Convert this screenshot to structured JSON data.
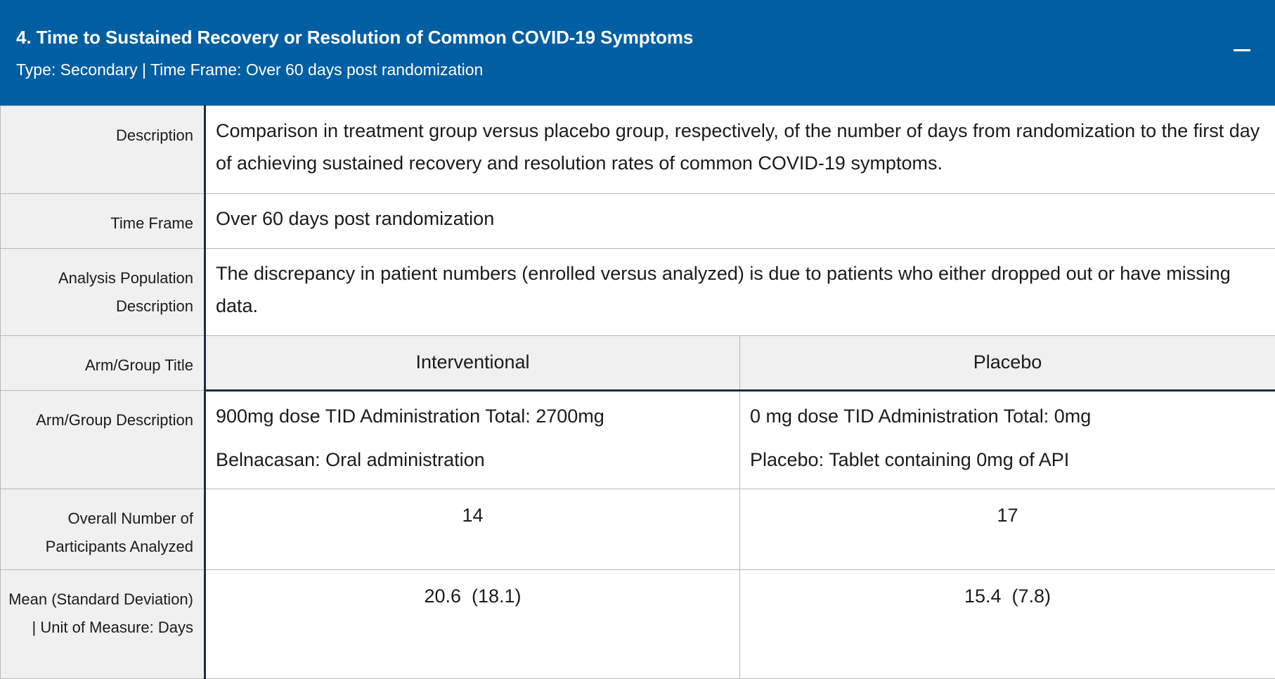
{
  "header": {
    "title": "4. Time to Sustained Recovery or Resolution of Common COVID-19 Symptoms",
    "subtitle": "Type: Secondary | Time Frame: Over 60 days post randomization",
    "collapse_icon": "minus-icon",
    "background": "#005ea2"
  },
  "rows": {
    "description": {
      "label": "Description",
      "value": "Comparison in treatment group versus placebo group, respectively, of the number of days from randomization to the first day of achieving sustained recovery and resolution rates of common COVID-19 symptoms."
    },
    "time_frame": {
      "label": "Time Frame",
      "value": "Over 60 days post randomization"
    },
    "analysis_population": {
      "label": "Analysis Population Description",
      "value": "The discrepancy in patient numbers (enrolled versus analyzed) is due to patients who either dropped out or have missing data."
    },
    "arm_title": {
      "label": "Arm/Group Title",
      "interventional": "Interventional",
      "placebo": "Placebo"
    },
    "arm_description": {
      "label": "Arm/Group Description",
      "interventional_line1": "900mg dose TID Administration Total: 2700mg",
      "interventional_line2": "Belnacasan: Oral administration",
      "placebo_line1": "0 mg dose TID Administration Total: 0mg",
      "placebo_line2": "Placebo: Tablet containing 0mg of API"
    },
    "participants": {
      "label": "Overall Number of Participants Analyzed",
      "interventional": "14",
      "placebo": "17"
    },
    "mean": {
      "label": "Mean (Standard Deviation) | Unit of Measure: Days",
      "interventional": "20.6  (18.1)",
      "placebo": "15.4  (7.8)"
    }
  }
}
